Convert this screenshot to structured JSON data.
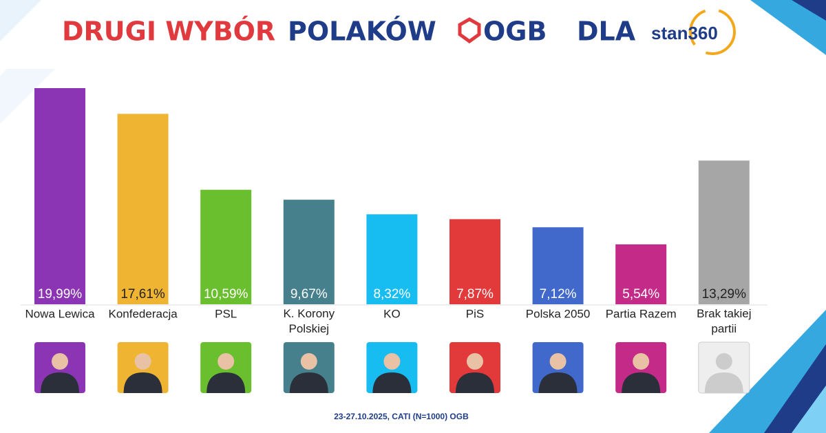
{
  "title_parts": {
    "red": "DRUGI WYBÓR",
    "blue": "POLAKÓW",
    "logo": "OGB",
    "for": "DLA",
    "partner": "stan360"
  },
  "chart_data": {
    "type": "bar",
    "categories": [
      "Nowa Lewica",
      "Konfederacja",
      "PSL",
      "K. Korony Polskiej",
      "KO",
      "PiS",
      "Polska 2050",
      "Partia Razem",
      "Brak takiej partii"
    ],
    "values": [
      19.99,
      17.61,
      10.59,
      9.67,
      8.32,
      7.87,
      7.12,
      5.54,
      13.29
    ],
    "value_labels": [
      "19,99%",
      "17,61%",
      "10,59%",
      "9,67%",
      "8,32%",
      "7,87%",
      "7,12%",
      "5,54%",
      "13,29%"
    ],
    "colors": [
      "#8b35b5",
      "#efb431",
      "#6abf2f",
      "#45808c",
      "#17bdf1",
      "#e23a3a",
      "#4169cc",
      "#c42a88",
      "#a6a6a6"
    ]
  },
  "footnote": "23-27.10.2025, CATI (N=1000) OGB"
}
